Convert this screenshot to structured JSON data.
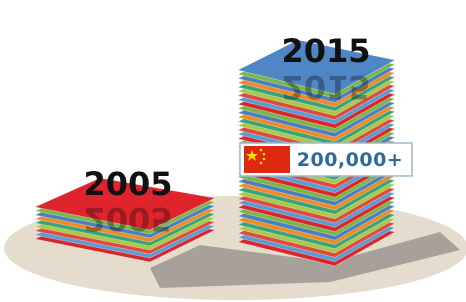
{
  "stacks": [
    {
      "year": "2005"
    },
    {
      "year": "2015",
      "badge": "200,000+"
    }
  ]
}
